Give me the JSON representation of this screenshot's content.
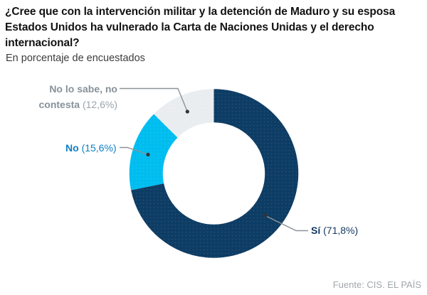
{
  "page": {
    "background": "#ffffff"
  },
  "header": {
    "title_lines": [
      "¿Cree que con la intervención militar y la detención de Maduro y su esposa",
      "Estados Unidos ha vulnerado la Carta de Naciones Unidas y el derecho",
      "internacional?"
    ],
    "subtitle": "En porcentaje de encuestados"
  },
  "chart_data": {
    "type": "pie",
    "variant": "donut",
    "title": "¿Cree que con la intervención militar y la detención de Maduro y su esposa Estados Unidos ha vulnerado la Carta de Naciones Unidas y el derecho internacional?",
    "subtitle": "En porcentaje de encuestados",
    "units": "%",
    "start_angle": "top",
    "direction": "clockwise",
    "legend_position": "callout-labels",
    "slices": [
      {
        "label": "Sí",
        "value": 71.8,
        "display": "Sí (71,8%)",
        "color": "#0d3c64",
        "label_color": "#11375f"
      },
      {
        "label": "No",
        "value": 15.6,
        "display": "No (15,6%)",
        "color": "#00bdf0",
        "label_color": "#0d7fc4"
      },
      {
        "label": "No lo sabe, no contesta",
        "value": 12.6,
        "display": "No lo sabe, no contesta (12,6%)",
        "color": "#e9edf0",
        "label_color": "#87919a"
      }
    ],
    "source": "Fuente: CIS. EL PAÍS"
  },
  "labels": {
    "si": {
      "name": "Sí",
      "pct": "(71,8%)"
    },
    "no": {
      "name": "No",
      "pct": "(15,6%)"
    },
    "nsnc": {
      "line1": "No lo sabe, no",
      "line2": "contesta",
      "pct": "(12,6%)",
      "pct_color": "#9ba4ab"
    }
  },
  "colors": {
    "leader_line": "#8d9297",
    "leader_dot": "#30343a",
    "title_text": "#121212",
    "source_text": "#a1a7ac"
  },
  "footer": {
    "source": "Fuente: CIS. EL PAÍS"
  }
}
